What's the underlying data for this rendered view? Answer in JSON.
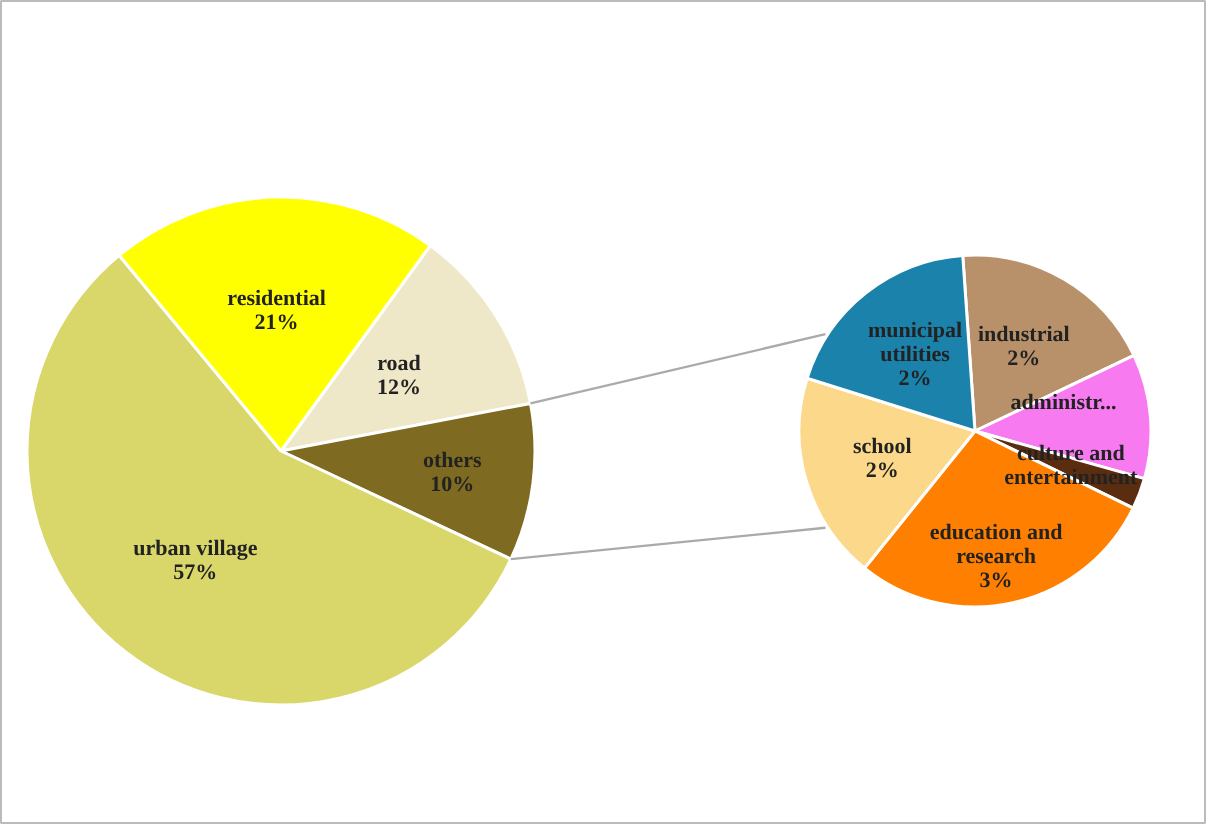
{
  "chart_data": [
    {
      "type": "pie",
      "categories": [
        "road",
        "others",
        "urban village",
        "residential"
      ],
      "values": [
        12,
        10,
        57,
        21
      ],
      "colors": [
        "#efe8c8",
        "#7f6a22",
        "#d9d66a",
        "#ffff00"
      ],
      "value_labels": [
        "12%",
        "10%",
        "57%",
        "21%"
      ]
    },
    {
      "type": "pie",
      "categories": [
        "industrial",
        "administr...",
        "culture and entertainment",
        "education and research",
        "school",
        "municipal utilities"
      ],
      "values": [
        2,
        1.2,
        0.3,
        3,
        2,
        2
      ],
      "colors": [
        "#b8906a",
        "#f77af0",
        "#5a2d10",
        "#ff8000",
        "#fcd98a",
        "#1a82ab"
      ],
      "value_labels": [
        "2%",
        null,
        null,
        "3%",
        "2%",
        "2%"
      ]
    }
  ]
}
